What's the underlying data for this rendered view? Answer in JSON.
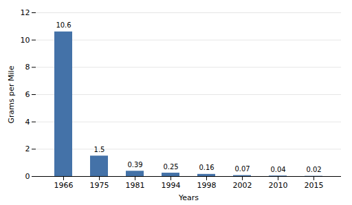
{
  "chart_data": {
    "type": "bar",
    "categories": [
      "1966",
      "1975",
      "1981",
      "1994",
      "1998",
      "2002",
      "2010",
      "2015"
    ],
    "values": [
      10.6,
      1.5,
      0.39,
      0.25,
      0.16,
      0.07,
      0.04,
      0.02
    ],
    "color": "#4472a8",
    "xlabel": "Years",
    "ylabel": "Grams per Mile",
    "ylim": [
      0,
      12
    ],
    "yticks": [
      0,
      2,
      4,
      6,
      8,
      10,
      12
    ],
    "grid": true,
    "data_labels": true
  }
}
